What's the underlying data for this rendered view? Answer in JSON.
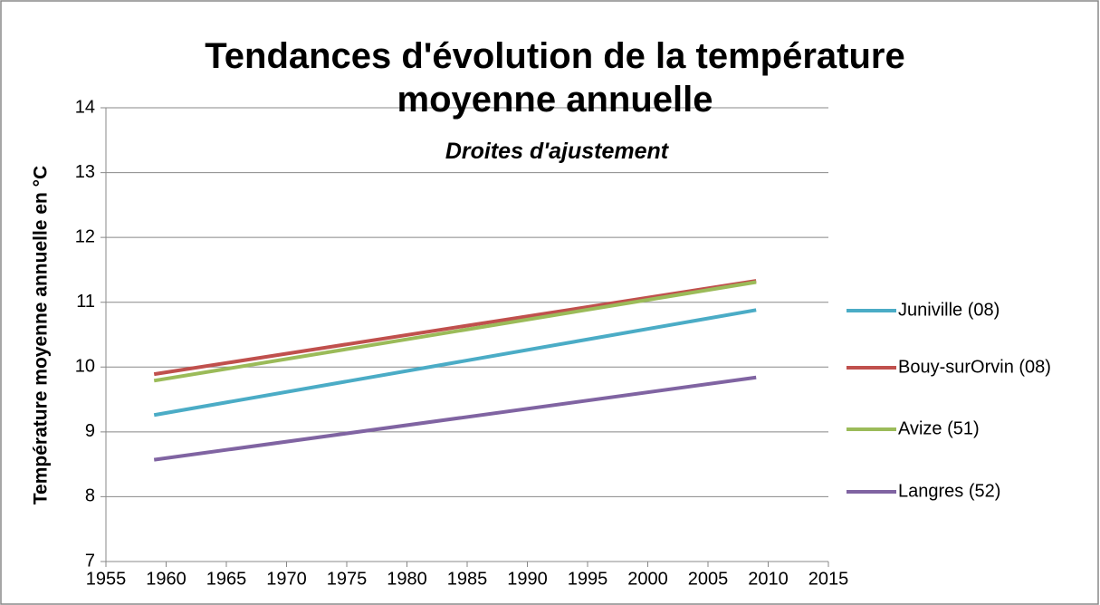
{
  "chart_data": {
    "type": "line",
    "title": "Tendances d'évolution de la température moyenne annuelle",
    "subtitle": "Droites d'ajustement",
    "y_label": "Température moyenne annuelle en °C",
    "x": [
      1959,
      2009
    ],
    "series": [
      {
        "name": "Juniville (08)",
        "color": "#4bacc6",
        "values": [
          9.26,
          10.88
        ]
      },
      {
        "name": "Bouy-surOrvin (08)",
        "color": "#c0504d",
        "values": [
          9.89,
          11.33
        ]
      },
      {
        "name": "Avize (51)",
        "color": "#9bbb59",
        "values": [
          9.79,
          11.31
        ]
      },
      {
        "name": "Langres (52)",
        "color": "#8064a2",
        "values": [
          8.57,
          9.84
        ]
      }
    ],
    "xlim": [
      1955,
      2015
    ],
    "xticks": [
      1955,
      1960,
      1965,
      1970,
      1975,
      1980,
      1985,
      1990,
      1995,
      2000,
      2005,
      2010,
      2015
    ],
    "ylim": [
      7,
      14
    ],
    "yticks": [
      7,
      8,
      9,
      10,
      11,
      12,
      13,
      14
    ],
    "grid": true,
    "legend": "right"
  }
}
